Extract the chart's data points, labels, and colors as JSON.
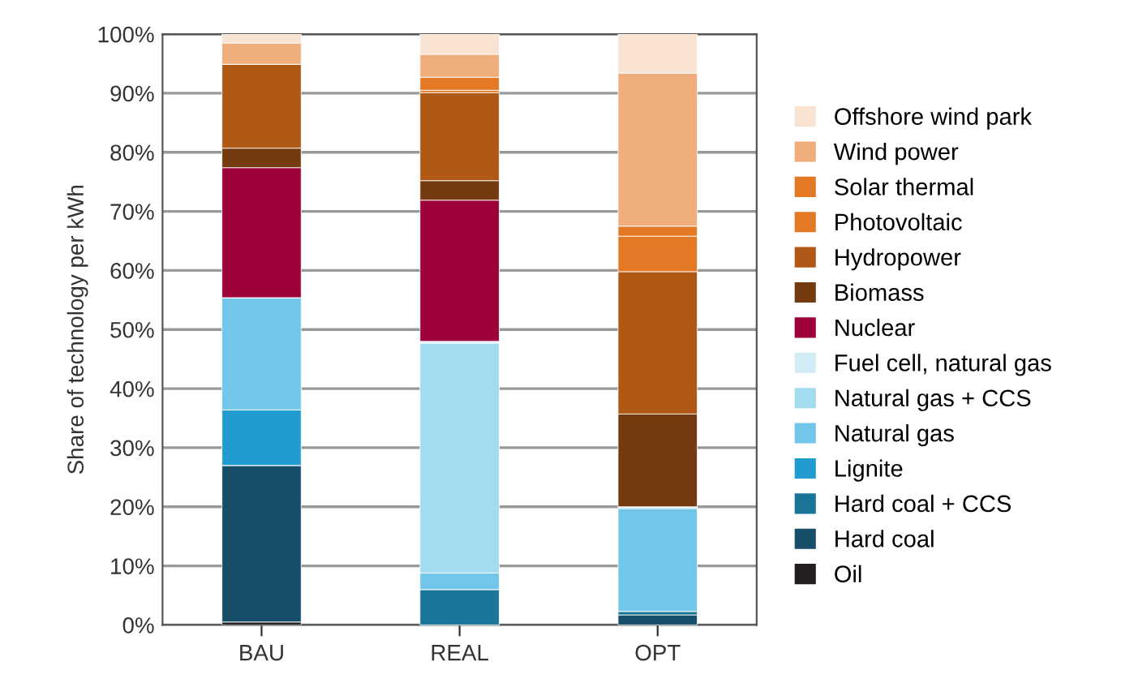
{
  "chart_data": {
    "type": "bar",
    "stacked": true,
    "ylabel": "Share of technology per kWh",
    "categories": [
      "BAU",
      "REAL",
      "OPT"
    ],
    "series": [
      {
        "name": "Oil",
        "color": "#231f20",
        "values": [
          0.5,
          0,
          0
        ]
      },
      {
        "name": "Hard coal",
        "color": "#174f6b",
        "values": [
          26.5,
          0,
          1.7
        ]
      },
      {
        "name": "Hard coal + CCS",
        "color": "#1a7599",
        "values": [
          0,
          6,
          0.6
        ]
      },
      {
        "name": "Lignite",
        "color": "#229cd0",
        "values": [
          9.4,
          0,
          0
        ]
      },
      {
        "name": "Natural gas",
        "color": "#72c6ea",
        "values": [
          19,
          2.8,
          17.4
        ]
      },
      {
        "name": "Natural gas + CCS",
        "color": "#a3dbef",
        "values": [
          0,
          38.9,
          0.3
        ]
      },
      {
        "name": "Fuel cell, natural gas",
        "color": "#d2ecf6",
        "values": [
          0,
          0.3,
          0
        ]
      },
      {
        "name": "Nuclear",
        "color": "#9e003a",
        "values": [
          22,
          23.9,
          0
        ]
      },
      {
        "name": "Biomass",
        "color": "#733b0f",
        "values": [
          3.3,
          3.3,
          15.7
        ]
      },
      {
        "name": "Hydropower",
        "color": "#b05917",
        "values": [
          14.2,
          14.9,
          24.1
        ]
      },
      {
        "name": "Photovoltaic",
        "color": "#e37925",
        "values": [
          0,
          0.4,
          6
        ]
      },
      {
        "name": "Solar thermal",
        "color": "#e37925",
        "values": [
          0,
          2.2,
          1.7
        ]
      },
      {
        "name": "Wind power",
        "color": "#efae7c",
        "values": [
          3.6,
          3.9,
          25.9
        ]
      },
      {
        "name": "Offshore wind park",
        "color": "#f9e3d3",
        "values": [
          1.5,
          3.4,
          6.6
        ]
      }
    ],
    "ylim": [
      0,
      100
    ],
    "yticks": [
      {
        "value": 0,
        "label": "0%"
      },
      {
        "value": 10,
        "label": "10%"
      },
      {
        "value": 20,
        "label": "20%"
      },
      {
        "value": 30,
        "label": "30%"
      },
      {
        "value": 40,
        "label": "40%"
      },
      {
        "value": 50,
        "label": "50%"
      },
      {
        "value": 60,
        "label": "60%"
      },
      {
        "value": 70,
        "label": "70%"
      },
      {
        "value": 80,
        "label": "80%"
      },
      {
        "value": 90,
        "label": "90%"
      },
      {
        "value": 100,
        "label": "100%"
      }
    ],
    "grid": "y",
    "legend": "right"
  }
}
